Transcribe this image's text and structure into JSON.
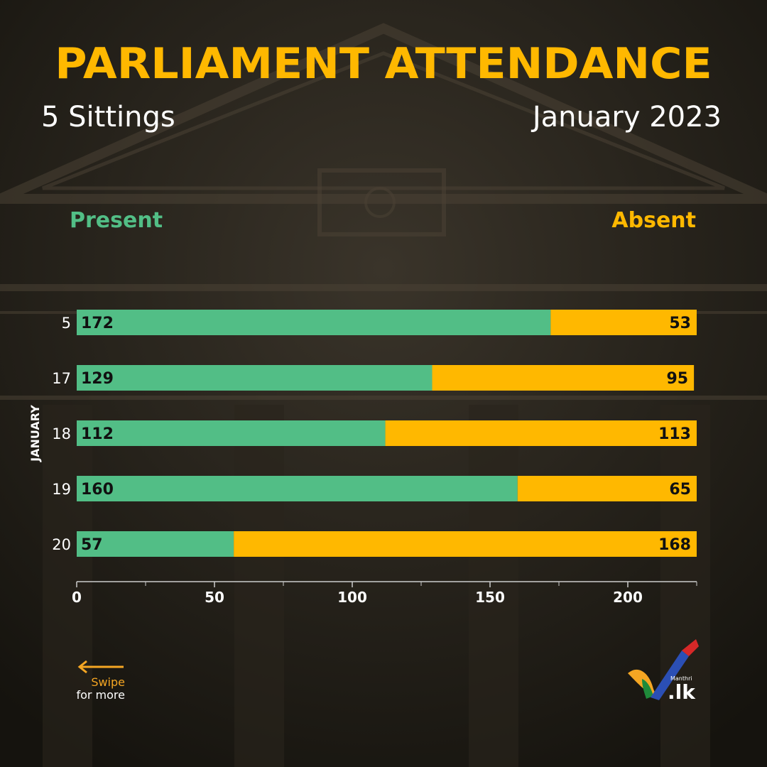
{
  "header": {
    "title": "PARLIAMENT ATTENDANCE",
    "subtitle_left": "5 Sittings",
    "subtitle_right": "January 2023"
  },
  "legend": {
    "present": "Present",
    "absent": "Absent"
  },
  "colors": {
    "present": "#52be86",
    "absent": "#ffb800",
    "title": "#ffb800",
    "background": "#1e1b14"
  },
  "chart_data": {
    "type": "bar",
    "orientation": "horizontal",
    "stacked": true,
    "categories": [
      "5",
      "17",
      "18",
      "19",
      "20"
    ],
    "category_axis_label": "JANUARY",
    "series": [
      {
        "name": "Present",
        "values": [
          172,
          129,
          112,
          160,
          57
        ]
      },
      {
        "name": "Absent",
        "values": [
          53,
          95,
          113,
          65,
          168
        ]
      }
    ],
    "xlim": [
      0,
      225
    ],
    "x_ticks": [
      0,
      50,
      100,
      150,
      200
    ],
    "x_minor_ticks": [
      25,
      75,
      125,
      175,
      225
    ],
    "legend_position": "top",
    "grid": false,
    "data_labels": true
  },
  "footer": {
    "swipe_line1": "Swipe",
    "swipe_line2": "for more",
    "logo_small_text": "Manthri",
    "logo_text": ".lk"
  }
}
